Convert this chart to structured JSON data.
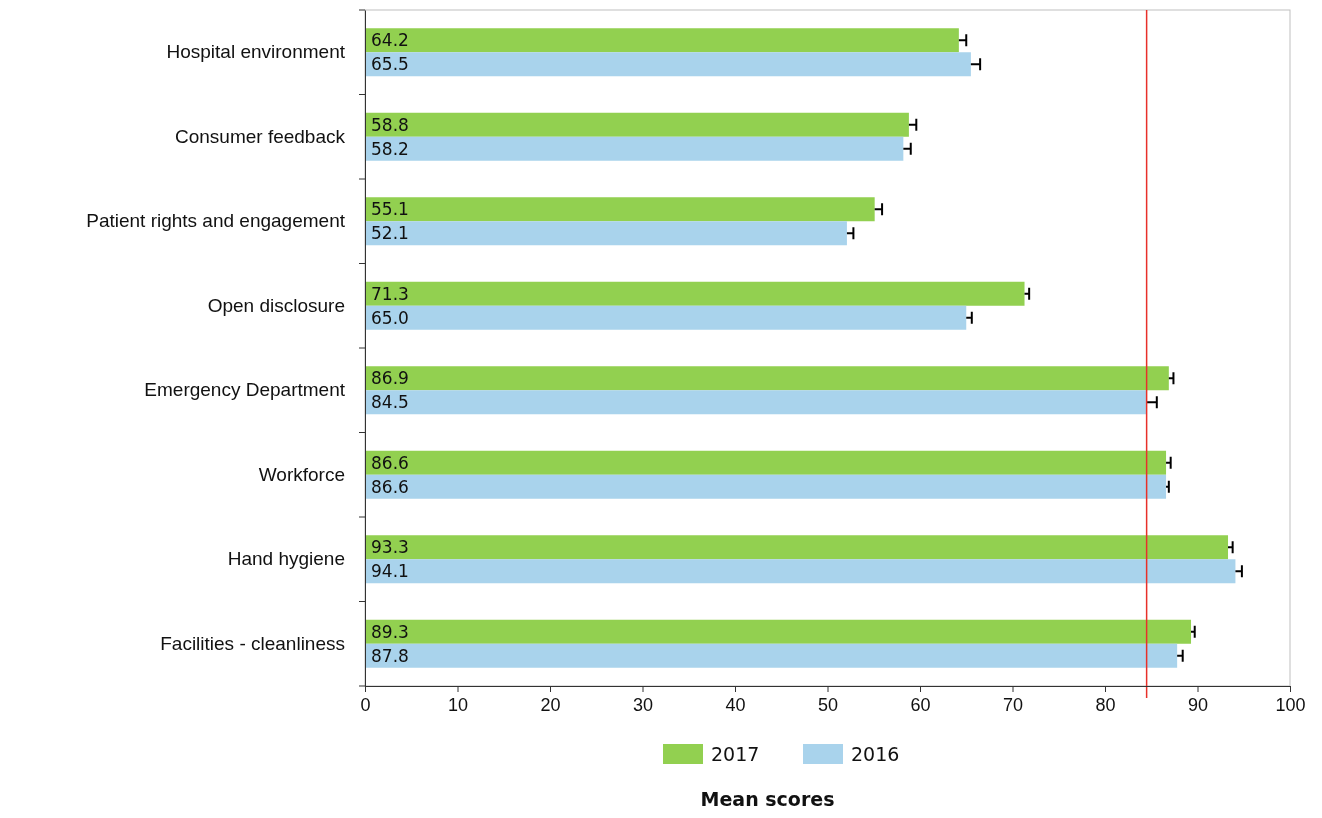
{
  "chart_data": {
    "type": "bar",
    "orientation": "horizontal",
    "xlabel": "Mean scores",
    "categories": [
      "Hospital environment",
      "Consumer feedback",
      "Patient rights and engagement",
      "Open disclosure",
      "Emergency Department",
      "Workforce",
      "Hand hygiene",
      "Facilities - cleanliness"
    ],
    "series": [
      {
        "name": "2017",
        "color": "#92d050",
        "values": [
          64.2,
          58.8,
          55.1,
          71.3,
          86.9,
          86.6,
          93.3,
          89.3
        ],
        "value_labels": [
          "64.2",
          "58.8",
          "55.1",
          "71.3",
          "86.9",
          "86.6",
          "93.3",
          "89.3"
        ],
        "errors": [
          [
            64.2,
            65.0
          ],
          [
            58.8,
            59.6
          ],
          [
            55.1,
            55.9
          ],
          [
            71.3,
            71.8
          ],
          [
            86.9,
            87.4
          ],
          [
            86.6,
            87.1
          ],
          [
            93.3,
            93.8
          ],
          [
            89.3,
            89.7
          ]
        ]
      },
      {
        "name": "2016",
        "color": "#a9d3ec",
        "values": [
          65.5,
          58.2,
          52.1,
          65.0,
          84.5,
          86.6,
          94.1,
          87.8
        ],
        "value_labels": [
          "65.5",
          "58.2",
          "52.1",
          "65.0",
          "84.5",
          "86.6",
          "94.1",
          "87.8"
        ],
        "errors": [
          [
            65.5,
            66.5
          ],
          [
            58.2,
            59.0
          ],
          [
            52.1,
            52.8
          ],
          [
            65.0,
            65.6
          ],
          [
            84.5,
            85.6
          ],
          [
            86.6,
            86.9
          ],
          [
            94.1,
            94.8
          ],
          [
            87.8,
            88.4
          ]
        ]
      }
    ],
    "xlim": [
      0,
      100
    ],
    "xticks": [
      0,
      10,
      20,
      30,
      40,
      50,
      60,
      70,
      80,
      90,
      100
    ],
    "ref_lines": [
      {
        "axis": "x",
        "value": 84.5,
        "color": "#e8302a"
      }
    ],
    "grid": false,
    "legend": "bottom"
  }
}
